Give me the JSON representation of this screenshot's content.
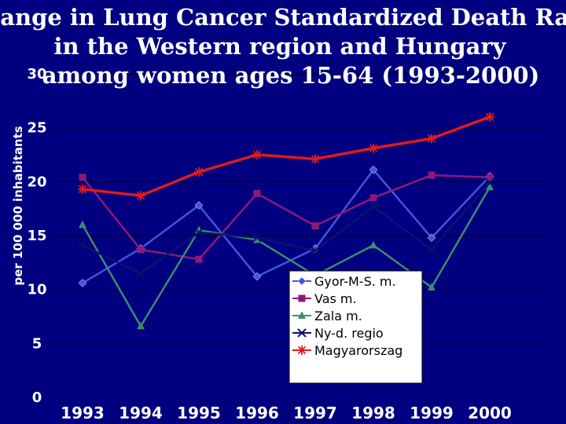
{
  "chart_data": {
    "type": "line",
    "title_lines": [
      "Change in Lung Cancer Standardized Death Rate",
      "in the Western region and Hungary",
      "among women ages 15-64 (1993-2000)"
    ],
    "ylabel": "per 100 000 inhabitants",
    "xlabel": "",
    "ylim": [
      0,
      30
    ],
    "y_ticks": [
      "0",
      "5",
      "10",
      "15",
      "20",
      "25",
      "30"
    ],
    "categories": [
      "1993",
      "1994",
      "1995",
      "1996",
      "1997",
      "1998",
      "1999",
      "2000"
    ],
    "grid": true,
    "legend_position": "bottom-right",
    "background_color": "#000080",
    "series": [
      {
        "name": "Gyor-M-S. m.",
        "color": "#3f56d8",
        "marker": "diamond",
        "values": [
          10.6,
          13.8,
          17.8,
          11.2,
          13.8,
          21.1,
          14.8,
          20.5
        ]
      },
      {
        "name": "Vas m.",
        "color": "#8b1a79",
        "marker": "square",
        "values": [
          20.4,
          13.7,
          12.8,
          18.9,
          15.9,
          18.5,
          20.6,
          20.4
        ]
      },
      {
        "name": "Zala m.",
        "color": "#3e8b6d",
        "marker": "triangle",
        "values": [
          16.0,
          6.6,
          15.5,
          14.6,
          11.3,
          14.1,
          10.2,
          19.5
        ]
      },
      {
        "name": "Ny-d. regio",
        "color": "#08136e",
        "marker": "x",
        "values": [
          14.1,
          11.5,
          15.3,
          14.8,
          13.6,
          17.7,
          13.7,
          19.9
        ]
      },
      {
        "name": "Magyarorszag",
        "color": "#e11a1a",
        "marker": "star",
        "values": [
          19.3,
          18.7,
          20.9,
          22.5,
          22.1,
          23.1,
          24.0,
          26.0
        ]
      }
    ]
  }
}
